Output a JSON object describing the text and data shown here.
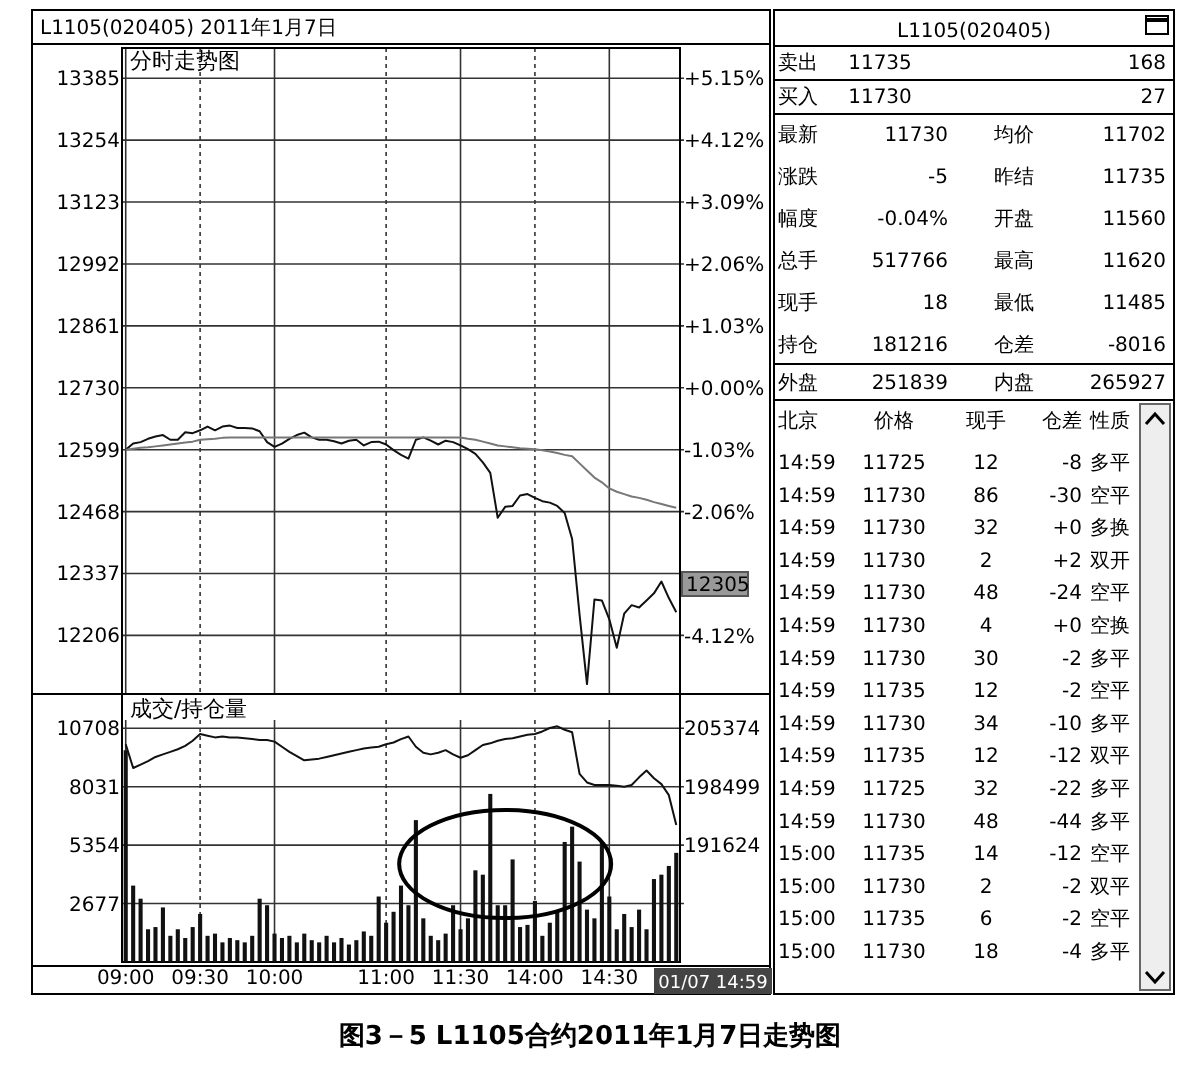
{
  "chart_data": [
    {
      "type": "line",
      "title": "L1105(020405) 2011年1月7日",
      "subtitle": "分时走势图",
      "categories": [
        null,
        null,
        null,
        null,
        null,
        null,
        null,
        null,
        null,
        null,
        null,
        null,
        null,
        null,
        null,
        null,
        null,
        null,
        null,
        null,
        null,
        null,
        null,
        null,
        null,
        null,
        null,
        null,
        null,
        null,
        null,
        null,
        null,
        null,
        null,
        null,
        null,
        null,
        null,
        null,
        null,
        null,
        null,
        null,
        null,
        null,
        null,
        null,
        null,
        null,
        null,
        null,
        null,
        null,
        null,
        null,
        null,
        null,
        null,
        null,
        null,
        null,
        null,
        null,
        null,
        null,
        null,
        null,
        null,
        null,
        null,
        null,
        null,
        null,
        null
      ],
      "ylim": [
        12082,
        13449
      ],
      "yticks": [
        13385,
        13254,
        13123,
        12992,
        12861,
        12730,
        12599,
        12468,
        12337,
        12206
      ],
      "y2lim": [
        -5.09,
        5.65
      ],
      "y2ticks": [
        {
          "value": 5.15,
          "label": "+5.15%"
        },
        {
          "value": 4.12,
          "label": "+4.12%"
        },
        {
          "value": 3.09,
          "label": "+3.09%"
        },
        {
          "value": 2.06,
          "label": "+2.06%"
        },
        {
          "value": 1.03,
          "label": "+1.03%"
        },
        {
          "value": 0,
          "label": "+0.00%"
        },
        {
          "value": -1.03,
          "label": "-1.03%"
        },
        {
          "value": -2.06,
          "label": "-2.06%"
        },
        {
          "value": -4.12,
          "label": "-4.12%"
        }
      ],
      "grid": true,
      "tick_labels": "y",
      "series": [
        {
          "color": "#111111",
          "values": [
            12599,
            12612,
            12615,
            12622,
            12627,
            12630,
            12620,
            12620,
            12636,
            12634,
            12640,
            12648,
            12640,
            12648,
            12650,
            12645,
            12645,
            12644,
            12638,
            12615,
            12605,
            12612,
            12622,
            12630,
            12635,
            12625,
            12620,
            12620,
            12617,
            12612,
            12618,
            12620,
            12608,
            12615,
            12616,
            12610,
            12598,
            12588,
            12580,
            12620,
            12625,
            12618,
            12610,
            12618,
            12615,
            12608,
            12600,
            12590,
            12572,
            12550,
            12455,
            12478,
            12480,
            12502,
            12505,
            12497,
            12490,
            12487,
            12480,
            12465,
            12410,
            12250,
            12103,
            12282,
            12280,
            12240,
            12180,
            12252,
            12270,
            12265,
            12280,
            12295,
            12320,
            12285,
            12255
          ]
        },
        {
          "color": "#777777",
          "values": [
            12599,
            12601,
            12603,
            12604,
            12606,
            12608,
            12610,
            12612,
            12614,
            12616,
            12620,
            12621,
            12622,
            12624,
            12625,
            12625,
            12625,
            12625,
            12625,
            12625,
            12625,
            12625,
            12625,
            12625,
            12625,
            12625,
            12625,
            12625,
            12625,
            12625,
            12625,
            12625,
            12625,
            12625,
            12625,
            12625,
            12625,
            12625,
            12625,
            12625,
            12625,
            12625,
            12625,
            12625,
            12625,
            12625,
            12622,
            12620,
            12616,
            12612,
            12608,
            12606,
            12604,
            12602,
            12601,
            12600,
            12598,
            12595,
            12592,
            12588,
            12585,
            12570,
            12555,
            12540,
            12530,
            12517,
            12510,
            12505,
            12500,
            12497,
            12493,
            12488,
            12484,
            12480,
            12476
          ]
        }
      ],
      "annotations": [
        "12305",
        "图3－5  L1105合约2011年1月7日走势图"
      ]
    },
    {
      "type": "bar",
      "title": "成交/持仓量",
      "categories": [
        "09:00",
        null,
        null,
        null,
        null,
        null,
        null,
        null,
        null,
        null,
        "09:30",
        null,
        null,
        null,
        null,
        null,
        null,
        null,
        null,
        null,
        "10:00",
        null,
        null,
        null,
        null,
        null,
        null,
        null,
        null,
        null,
        null,
        null,
        null,
        null,
        null,
        "11:00",
        null,
        null,
        null,
        null,
        null,
        null,
        null,
        null,
        null,
        "11:30",
        null,
        null,
        null,
        null,
        null,
        null,
        null,
        null,
        null,
        "14:00",
        null,
        null,
        null,
        null,
        null,
        null,
        null,
        null,
        null,
        "14:30",
        null,
        null,
        null,
        null,
        null,
        null,
        null,
        null,
        null
      ],
      "ylim": [
        0,
        12277
      ],
      "yticks": [
        10708,
        8031,
        5354,
        2677
      ],
      "y2lim": [
        177874,
        209404
      ],
      "y2ticks": [
        205374,
        198499,
        191624
      ],
      "grid": true,
      "series": [
        {
          "type": "bar",
          "color": "#111111",
          "values": [
            9700,
            3500,
            2900,
            1500,
            1600,
            2500,
            1200,
            1500,
            1100,
            1600,
            2200,
            1200,
            1300,
            900,
            1100,
            1000,
            900,
            1200,
            2900,
            2600,
            1300,
            1100,
            1200,
            900,
            1300,
            1000,
            900,
            1200,
            900,
            1100,
            800,
            1000,
            1400,
            1200,
            3000,
            1800,
            2300,
            3500,
            2600,
            6500,
            2000,
            1200,
            1000,
            1300,
            2600,
            1500,
            2000,
            4200,
            4000,
            7700,
            2600,
            2600,
            4700,
            1600,
            1700,
            2800,
            1200,
            1800,
            2300,
            5500,
            6200,
            4600,
            2400,
            2000,
            5500,
            3000,
            1500,
            2200,
            1600,
            2400,
            1500,
            3800,
            4000,
            4400,
            5000
          ]
        },
        {
          "type": "line",
          "axis": "y2",
          "color": "#111111",
          "values": [
            203500,
            200700,
            201100,
            201500,
            202000,
            202300,
            202600,
            202900,
            203300,
            203900,
            204700,
            204500,
            204300,
            204400,
            204300,
            204300,
            204200,
            204100,
            204000,
            204000,
            203800,
            203200,
            202600,
            202100,
            201600,
            201700,
            201800,
            202000,
            202200,
            202400,
            202600,
            202800,
            203000,
            203100,
            203200,
            203500,
            203700,
            204100,
            204400,
            203200,
            202500,
            202300,
            202500,
            202800,
            202300,
            201900,
            202200,
            202800,
            203400,
            203600,
            203900,
            204100,
            204200,
            204400,
            204600,
            204700,
            205000,
            205400,
            205600,
            205200,
            204900,
            200000,
            199000,
            198700,
            198700,
            198700,
            198600,
            198500,
            198700,
            199600,
            200400,
            199500,
            198800,
            197500,
            194000
          ]
        }
      ],
      "annotations": [
        "01/07 14:59"
      ]
    },
    {
      "type": "other",
      "annotations": [
        "L1105(020405)",
        "卖出",
        "11735",
        "168",
        "买入",
        "11730",
        "27",
        "最新",
        "11730",
        "均价",
        "11702",
        "涨跌",
        "-5",
        "昨结",
        "11735",
        "幅度",
        "-0.04%",
        "开盘",
        "11560",
        "总手",
        "517766",
        "最高",
        "11620",
        "现手",
        "18",
        "最低",
        "11485",
        "持仓",
        "181216",
        "仓差",
        "-8016",
        "外盘",
        "251839",
        "内盘",
        "265927",
        "北京",
        "价格",
        "现手",
        "仓差",
        "性质",
        "14:59",
        "11725",
        "12",
        "-8",
        "多平",
        "14:59",
        "11730",
        "86",
        "-30",
        "空平",
        "14:59",
        "11730",
        "32",
        "+0",
        "多换",
        "14:59",
        "11730",
        "2",
        "+2",
        "双开",
        "14:59",
        "11730",
        "48",
        "-24",
        "空平",
        "14:59",
        "11730",
        "4",
        "+0",
        "空换",
        "14:59",
        "11730",
        "30",
        "-2",
        "多平",
        "14:59",
        "11735",
        "12",
        "-2",
        "空平",
        "14:59",
        "11730",
        "34",
        "-10",
        "多平",
        "14:59",
        "11735",
        "12",
        "-12",
        "双平",
        "14:59",
        "11725",
        "32",
        "-22",
        "多平",
        "14:59",
        "11730",
        "48",
        "-44",
        "多平",
        "15:00",
        "11735",
        "14",
        "-12",
        "空平",
        "15:00",
        "11730",
        "2",
        "-2",
        "双平",
        "15:00",
        "11735",
        "6",
        "-2",
        "空平",
        "15:00",
        "11730",
        "18",
        "-4",
        "多平"
      ]
    }
  ]
}
